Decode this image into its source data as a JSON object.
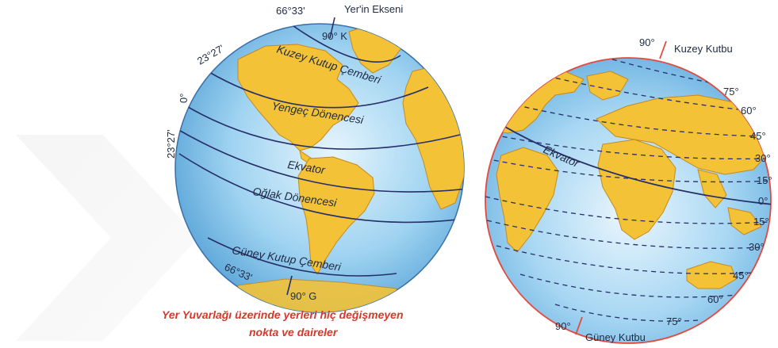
{
  "left_globe": {
    "axis_label": "Yer'in Ekseni",
    "north_pole_label": "90° K",
    "south_pole_label": "90° G",
    "circles": {
      "arctic": "Kuzey Kutup Çemberi",
      "cancer": "Yengeç Dönencesi",
      "equator": "Ekvator",
      "capricorn": "Oğlak Dönencesi",
      "antarctic": "Güney Kutup Çemberi"
    },
    "latitude_labels": {
      "arctic_top": "66°33'",
      "cancer_left": "23°27'",
      "equator_left": "0°",
      "capricorn_left": "23°27'",
      "antarctic_bottom": "66°33'"
    },
    "caption_line1": "Yer Yuvarlağı üzerinde yerleri hiç değişmeyen",
    "caption_line2": "nokta ve daireler"
  },
  "right_globe": {
    "north_pole_value": "90°",
    "north_pole_label": "Kuzey Kutbu",
    "south_pole_value": "90°",
    "south_pole_label": "Güney Kutbu",
    "equator_label": "Ekvator",
    "north_latitudes": [
      "75°",
      "60°",
      "45°",
      "30°",
      "15°"
    ],
    "equator_value": "0°",
    "south_latitudes": [
      "15°",
      "30°",
      "45°",
      "60°",
      "75°"
    ]
  },
  "colors": {
    "ocean": "#6fb8e6",
    "ocean_light": "#d8eefa",
    "land": "#f3c237",
    "land_edge": "#c68a1c",
    "line": "#27306a",
    "rim_right": "#e24a3d",
    "caption": "#d9372b"
  }
}
